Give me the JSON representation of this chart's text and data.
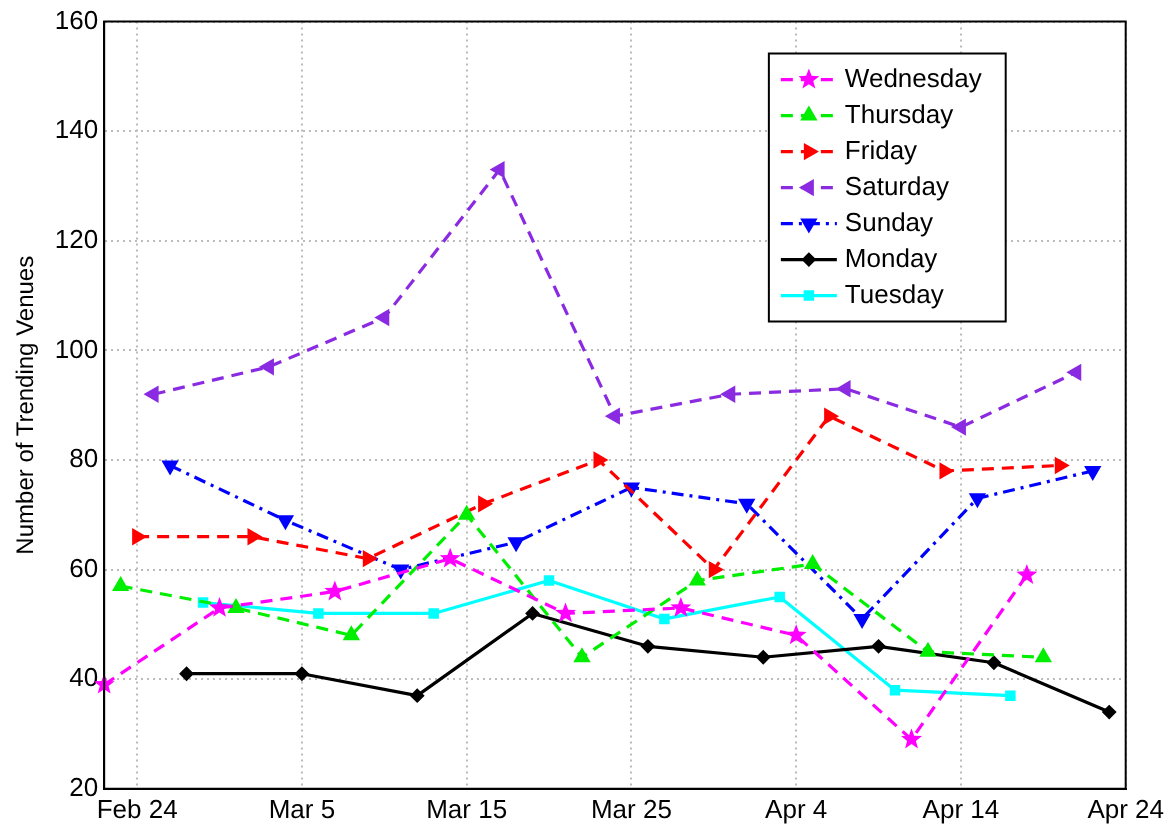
{
  "chart_data": {
    "type": "line",
    "ylabel": "Number of Trending Venues",
    "xlim": [
      "--02-22",
      "--04-24"
    ],
    "xticks": [
      {
        "value": "--02-24",
        "label": "Feb 24"
      },
      {
        "value": "--03-05",
        "label": "Mar 5"
      },
      {
        "value": "--03-15",
        "label": "Mar 15"
      },
      {
        "value": "--03-25",
        "label": "Mar 25"
      },
      {
        "value": "--04-04",
        "label": "Apr 4"
      },
      {
        "value": "--04-14",
        "label": "Apr 14"
      },
      {
        "value": "--04-24",
        "label": "Apr 24"
      }
    ],
    "ylim": [
      20,
      160
    ],
    "yticks": [
      20,
      40,
      60,
      80,
      100,
      120,
      140,
      160
    ],
    "grid": true,
    "legend": "top right",
    "series": [
      {
        "name": "Wednesday",
        "color": "#ff00ff",
        "marker": "star",
        "line_style": "dashed",
        "x": [
          "--02-22",
          "--02-29",
          "--03-07",
          "--03-14",
          "--03-21",
          "--03-28",
          "--04-04",
          "--04-11",
          "--04-18"
        ],
        "values": [
          39,
          53,
          56,
          62,
          52,
          53,
          48,
          29,
          59
        ]
      },
      {
        "name": "Thursday",
        "color": "#00ee00",
        "marker": "triangle",
        "line_style": "dashed",
        "x": [
          "--02-23",
          "--03-01",
          "--03-08",
          "--03-15",
          "--03-22",
          "--03-29",
          "--04-05",
          "--04-12",
          "--04-19"
        ],
        "values": [
          57,
          53,
          48,
          70,
          44,
          58,
          61,
          45,
          44
        ]
      },
      {
        "name": "Friday",
        "color": "#ff0000",
        "marker": "triangle-right",
        "line_style": "dashed",
        "x": [
          "--02-24",
          "--03-02",
          "--03-09",
          "--03-16",
          "--03-23",
          "--03-30",
          "--04-06",
          "--04-13",
          "--04-20"
        ],
        "values": [
          66,
          66,
          62,
          72,
          80,
          60,
          88,
          78,
          79
        ]
      },
      {
        "name": "Saturday",
        "color": "#8a2be2",
        "marker": "triangle-left",
        "line_style": "dashed",
        "x": [
          "--02-25",
          "--03-03",
          "--03-10",
          "--03-17",
          "--03-24",
          "--03-31",
          "--04-07",
          "--04-14",
          "--04-21"
        ],
        "values": [
          92,
          97,
          106,
          133,
          88,
          92,
          93,
          86,
          96
        ]
      },
      {
        "name": "Sunday",
        "color": "#0000ff",
        "marker": "triangle-down",
        "line_style": "dashdot",
        "x": [
          "--02-26",
          "--03-04",
          "--03-11",
          "--03-18",
          "--03-25",
          "--04-01",
          "--04-08",
          "--04-15",
          "--04-22"
        ],
        "values": [
          79,
          69,
          60,
          65,
          75,
          72,
          51,
          73,
          78
        ]
      },
      {
        "name": "Monday",
        "color": "#000000",
        "marker": "diamond",
        "line_style": "solid",
        "x": [
          "--02-27",
          "--03-05",
          "--03-12",
          "--03-19",
          "--03-26",
          "--04-02",
          "--04-09",
          "--04-16",
          "--04-23"
        ],
        "values": [
          41,
          41,
          37,
          52,
          46,
          44,
          46,
          43,
          34
        ]
      },
      {
        "name": "Tuesday",
        "color": "#00ffff",
        "marker": "square",
        "line_style": "solid",
        "x": [
          "--02-28",
          "--03-06",
          "--03-13",
          "--03-20",
          "--03-27",
          "--04-03",
          "--04-10",
          "--04-17"
        ],
        "values": [
          54,
          52,
          52,
          58,
          51,
          55,
          38,
          37
        ]
      }
    ]
  }
}
